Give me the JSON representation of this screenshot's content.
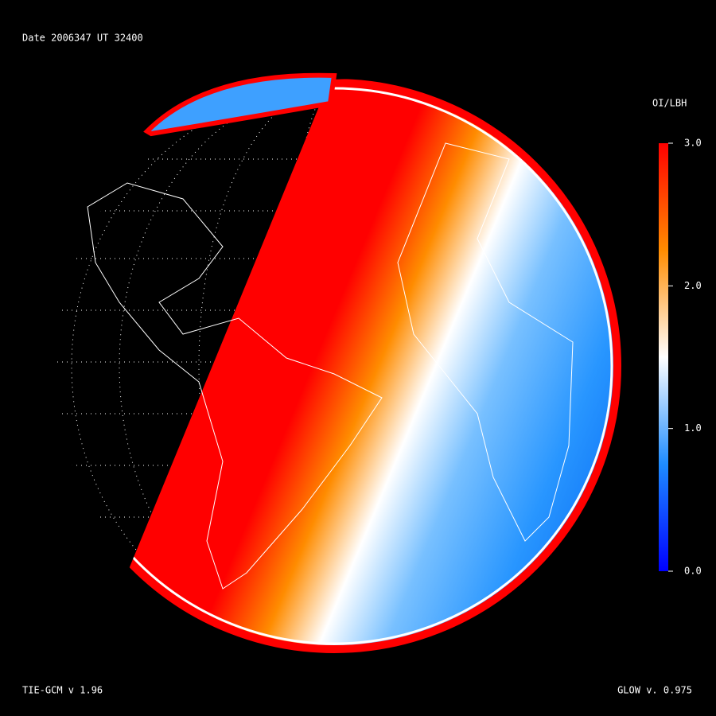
{
  "header": {
    "title": "Date 2006347  UT 32400"
  },
  "colorbar": {
    "label": "OI/LBH",
    "lim": [
      0,
      3
    ],
    "ticks": [
      {
        "value": 0,
        "label": "0.0"
      },
      {
        "value": 1,
        "label": "1.0"
      },
      {
        "value": 2,
        "label": "2.0"
      },
      {
        "value": 3,
        "label": "3.0"
      }
    ]
  },
  "footer": {
    "left": "TIE-GCM v 1.96",
    "right": "GLOW v. 0.975"
  }
}
